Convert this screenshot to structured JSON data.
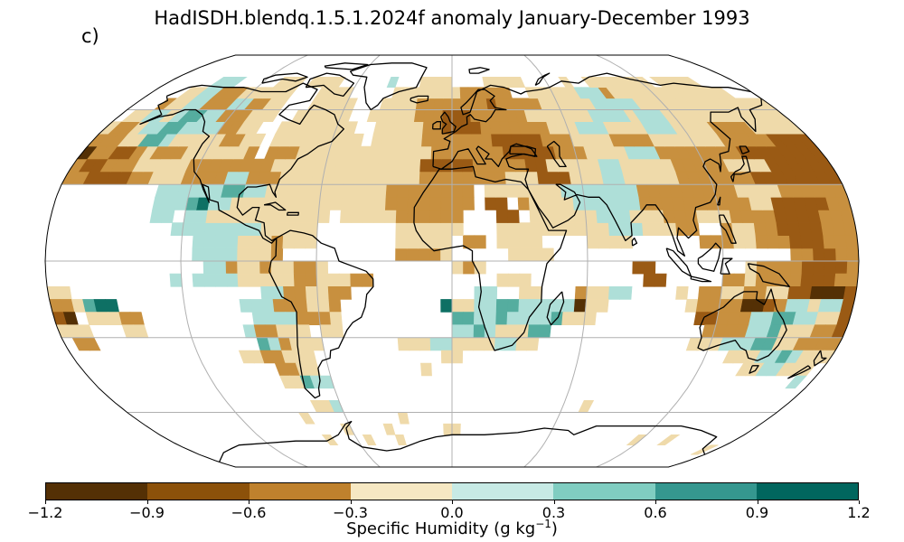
{
  "title": "HadISDH.blendq.1.5.1.2024f anomaly January-December 1993",
  "panel_label": "c)",
  "colorbar": {
    "label_prefix": "Specific Humidity (g kg",
    "label_exp": "−1",
    "label_suffix": ")",
    "ticks": [
      "−1.2",
      "−0.9",
      "−0.6",
      "−0.3",
      "0.0",
      "0.3",
      "0.6",
      "0.9",
      "1.2"
    ],
    "colors": [
      "#543005",
      "#8c510a",
      "#bf812d",
      "#f6e8c3",
      "#c7eae5",
      "#80cdc1",
      "#35978f",
      "#01665e"
    ]
  },
  "map": {
    "projection": "Robinson",
    "gridlines": true,
    "coastlines": true,
    "palette": {
      "dark_brown": "#543005",
      "brown": "#9a5a14",
      "tan": "#c8903f",
      "light_tan": "#efdaaa",
      "light_teal": "#aedfd8",
      "teal": "#55ad9f",
      "dark_teal": "#0e7064",
      "darkest_teal": "#003c30"
    }
  }
}
